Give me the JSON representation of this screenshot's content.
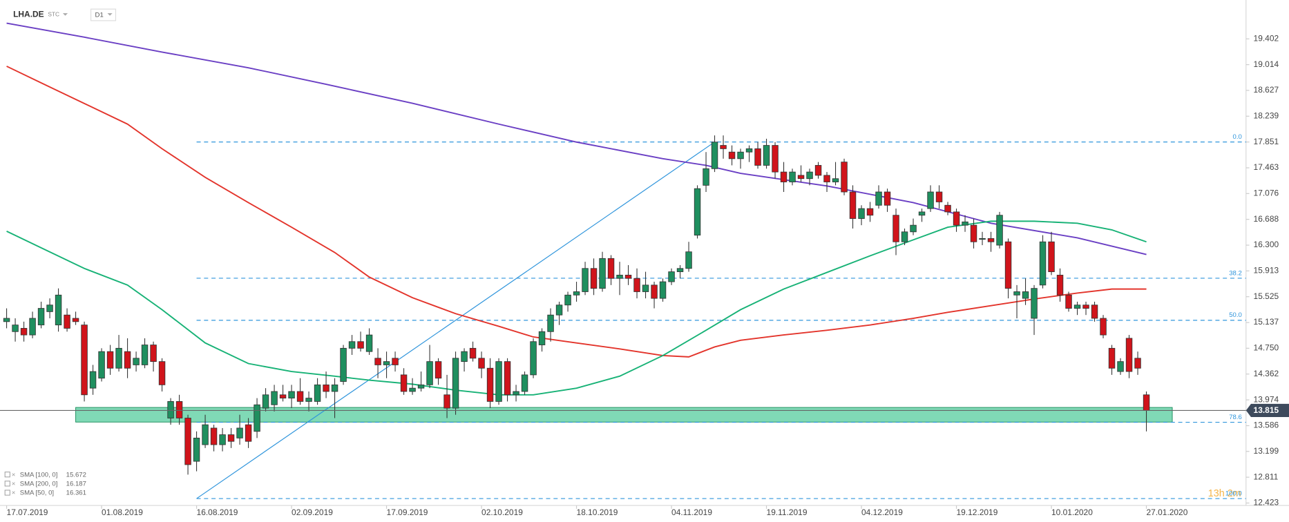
{
  "chart_data": {
    "type": "candlestick",
    "symbol": "LHA.DE",
    "symbol_type": "STC",
    "interval": "D1",
    "timer": "13h 2m",
    "categories": [
      "17.07.2019",
      null,
      null,
      null,
      null,
      null,
      null,
      null,
      null,
      null,
      null,
      "01.08.2019",
      null,
      null,
      null,
      null,
      null,
      null,
      null,
      null,
      null,
      null,
      "16.08.2019",
      null,
      null,
      null,
      null,
      null,
      null,
      null,
      null,
      null,
      null,
      "02.09.2019",
      null,
      null,
      null,
      null,
      null,
      null,
      null,
      null,
      null,
      null,
      "17.09.2019",
      null,
      null,
      null,
      null,
      null,
      null,
      null,
      null,
      null,
      null,
      "02.10.2019",
      null,
      null,
      null,
      null,
      null,
      null,
      null,
      null,
      null,
      null,
      "18.10.2019",
      null,
      null,
      null,
      null,
      null,
      null,
      null,
      null,
      null,
      null,
      "04.11.2019",
      null,
      null,
      null,
      null,
      null,
      null,
      null,
      null,
      null,
      null,
      "19.11.2019",
      null,
      null,
      null,
      null,
      null,
      null,
      null,
      null,
      null,
      null,
      "04.12.2019",
      null,
      null,
      null,
      null,
      null,
      null,
      null,
      null,
      null,
      null,
      "19.12.2019",
      null,
      null,
      null,
      null,
      null,
      null,
      null,
      null,
      null,
      null,
      "10.01.2020",
      null,
      null,
      null,
      null,
      null,
      null,
      null,
      null,
      null,
      null,
      "27.01.2020"
    ],
    "ohlc": [
      [
        15.15,
        15.35,
        15.05,
        15.2
      ],
      [
        15.0,
        15.2,
        14.85,
        15.1
      ],
      [
        15.05,
        15.15,
        14.85,
        14.95
      ],
      [
        14.95,
        15.3,
        14.9,
        15.2
      ],
      [
        15.1,
        15.45,
        15.05,
        15.35
      ],
      [
        15.3,
        15.5,
        15.2,
        15.4
      ],
      [
        15.1,
        15.65,
        15.0,
        15.55
      ],
      [
        15.25,
        15.35,
        15.0,
        15.05
      ],
      [
        15.2,
        15.3,
        15.1,
        15.15
      ],
      [
        15.1,
        15.15,
        13.95,
        14.05
      ],
      [
        14.15,
        14.5,
        14.05,
        14.4
      ],
      [
        14.3,
        14.75,
        14.25,
        14.7
      ],
      [
        14.7,
        14.8,
        14.35,
        14.45
      ],
      [
        14.45,
        14.95,
        14.4,
        14.75
      ],
      [
        14.7,
        14.9,
        14.3,
        14.45
      ],
      [
        14.5,
        14.7,
        14.4,
        14.6
      ],
      [
        14.5,
        14.9,
        14.45,
        14.8
      ],
      [
        14.8,
        14.85,
        14.4,
        14.55
      ],
      [
        14.55,
        14.6,
        14.1,
        14.2
      ],
      [
        13.7,
        14.0,
        13.6,
        13.95
      ],
      [
        13.95,
        14.05,
        13.6,
        13.7
      ],
      [
        13.7,
        13.75,
        12.85,
        13.0
      ],
      [
        13.05,
        13.5,
        12.9,
        13.4
      ],
      [
        13.3,
        13.75,
        13.25,
        13.6
      ],
      [
        13.55,
        13.6,
        13.2,
        13.3
      ],
      [
        13.3,
        13.55,
        13.2,
        13.45
      ],
      [
        13.45,
        13.55,
        13.25,
        13.35
      ],
      [
        13.4,
        13.75,
        13.3,
        13.55
      ],
      [
        13.6,
        13.7,
        13.25,
        13.35
      ],
      [
        13.5,
        14.0,
        13.4,
        13.9
      ],
      [
        13.85,
        14.15,
        13.8,
        14.05
      ],
      [
        13.9,
        14.2,
        13.8,
        14.1
      ],
      [
        14.05,
        14.2,
        13.95,
        14.0
      ],
      [
        14.0,
        14.2,
        13.85,
        14.1
      ],
      [
        14.1,
        14.3,
        13.9,
        13.95
      ],
      [
        13.95,
        14.1,
        13.8,
        14.0
      ],
      [
        13.95,
        14.3,
        13.9,
        14.2
      ],
      [
        14.2,
        14.4,
        14.0,
        14.1
      ],
      [
        14.1,
        14.3,
        13.7,
        14.2
      ],
      [
        14.25,
        14.8,
        14.2,
        14.75
      ],
      [
        14.75,
        14.95,
        14.65,
        14.85
      ],
      [
        14.85,
        15.0,
        14.7,
        14.75
      ],
      [
        14.7,
        15.05,
        14.65,
        14.95
      ],
      [
        14.6,
        14.75,
        14.3,
        14.5
      ],
      [
        14.5,
        14.7,
        14.3,
        14.55
      ],
      [
        14.6,
        14.7,
        14.4,
        14.5
      ],
      [
        14.35,
        14.45,
        14.05,
        14.1
      ],
      [
        14.1,
        14.3,
        14.05,
        14.15
      ],
      [
        14.15,
        14.4,
        14.1,
        14.2
      ],
      [
        14.2,
        14.8,
        14.15,
        14.55
      ],
      [
        14.55,
        14.6,
        14.2,
        14.3
      ],
      [
        14.05,
        14.35,
        13.7,
        13.85
      ],
      [
        13.85,
        14.7,
        13.75,
        14.6
      ],
      [
        14.55,
        14.75,
        14.4,
        14.7
      ],
      [
        14.75,
        14.85,
        14.55,
        14.6
      ],
      [
        14.6,
        14.7,
        14.3,
        14.45
      ],
      [
        14.45,
        14.6,
        13.85,
        13.95
      ],
      [
        13.95,
        14.6,
        13.9,
        14.55
      ],
      [
        14.55,
        14.6,
        13.95,
        14.05
      ],
      [
        14.05,
        14.2,
        13.95,
        14.1
      ],
      [
        14.1,
        14.4,
        14.05,
        14.35
      ],
      [
        14.35,
        14.9,
        14.3,
        14.85
      ],
      [
        14.8,
        15.05,
        14.7,
        15.0
      ],
      [
        15.0,
        15.35,
        14.85,
        15.25
      ],
      [
        15.25,
        15.45,
        15.1,
        15.4
      ],
      [
        15.4,
        15.6,
        15.3,
        15.55
      ],
      [
        15.55,
        15.75,
        15.45,
        15.6
      ],
      [
        15.6,
        16.05,
        15.55,
        15.95
      ],
      [
        15.95,
        16.1,
        15.55,
        15.65
      ],
      [
        15.65,
        16.2,
        15.6,
        16.1
      ],
      [
        16.1,
        16.15,
        15.7,
        15.8
      ],
      [
        15.8,
        16.05,
        15.55,
        15.85
      ],
      [
        15.85,
        16.0,
        15.7,
        15.8
      ],
      [
        15.8,
        15.95,
        15.5,
        15.6
      ],
      [
        15.6,
        15.9,
        15.5,
        15.7
      ],
      [
        15.7,
        15.75,
        15.35,
        15.5
      ],
      [
        15.5,
        15.8,
        15.45,
        15.75
      ],
      [
        15.75,
        15.95,
        15.7,
        15.9
      ],
      [
        15.9,
        16.0,
        15.8,
        15.95
      ],
      [
        15.95,
        16.35,
        15.9,
        16.2
      ],
      [
        16.45,
        17.2,
        16.4,
        17.15
      ],
      [
        17.2,
        17.7,
        17.1,
        17.45
      ],
      [
        17.45,
        17.95,
        17.4,
        17.85
      ],
      [
        17.8,
        17.95,
        17.6,
        17.75
      ],
      [
        17.7,
        17.8,
        17.5,
        17.6
      ],
      [
        17.6,
        17.75,
        17.45,
        17.7
      ],
      [
        17.7,
        17.8,
        17.55,
        17.75
      ],
      [
        17.75,
        17.85,
        17.45,
        17.5
      ],
      [
        17.5,
        17.9,
        17.45,
        17.8
      ],
      [
        17.8,
        17.85,
        17.3,
        17.4
      ],
      [
        17.4,
        17.55,
        17.1,
        17.25
      ],
      [
        17.25,
        17.45,
        17.2,
        17.4
      ],
      [
        17.35,
        17.5,
        17.25,
        17.3
      ],
      [
        17.3,
        17.45,
        17.2,
        17.4
      ],
      [
        17.5,
        17.55,
        17.3,
        17.35
      ],
      [
        17.35,
        17.4,
        17.1,
        17.25
      ],
      [
        17.25,
        17.55,
        17.2,
        17.3
      ],
      [
        17.55,
        17.6,
        17.05,
        17.1
      ],
      [
        17.1,
        17.2,
        16.55,
        16.7
      ],
      [
        16.7,
        16.9,
        16.6,
        16.85
      ],
      [
        16.85,
        16.95,
        16.65,
        16.75
      ],
      [
        16.9,
        17.2,
        16.85,
        17.1
      ],
      [
        17.1,
        17.15,
        16.8,
        16.9
      ],
      [
        16.75,
        16.85,
        16.15,
        16.35
      ],
      [
        16.35,
        16.55,
        16.3,
        16.5
      ],
      [
        16.5,
        16.7,
        16.45,
        16.6
      ],
      [
        16.75,
        16.85,
        16.65,
        16.8
      ],
      [
        16.85,
        17.2,
        16.8,
        17.1
      ],
      [
        17.1,
        17.2,
        16.85,
        16.95
      ],
      [
        16.9,
        16.95,
        16.75,
        16.8
      ],
      [
        16.8,
        16.85,
        16.5,
        16.6
      ],
      [
        16.6,
        16.75,
        16.5,
        16.65
      ],
      [
        16.6,
        16.7,
        16.25,
        16.35
      ],
      [
        16.4,
        16.5,
        16.3,
        16.4
      ],
      [
        16.4,
        16.5,
        16.2,
        16.35
      ],
      [
        16.3,
        16.8,
        16.25,
        16.75
      ],
      [
        16.35,
        16.4,
        15.5,
        15.65
      ],
      [
        15.55,
        15.7,
        15.2,
        15.6
      ],
      [
        15.5,
        15.8,
        15.4,
        15.6
      ],
      [
        15.2,
        15.7,
        14.95,
        15.65
      ],
      [
        15.7,
        16.45,
        15.65,
        16.35
      ],
      [
        16.35,
        16.5,
        15.85,
        15.9
      ],
      [
        15.85,
        15.95,
        15.45,
        15.55
      ],
      [
        15.55,
        15.6,
        15.3,
        15.35
      ],
      [
        15.35,
        15.45,
        15.25,
        15.4
      ],
      [
        15.4,
        15.45,
        15.25,
        15.35
      ],
      [
        15.4,
        15.45,
        15.15,
        15.2
      ],
      [
        15.2,
        15.25,
        14.9,
        14.95
      ],
      [
        14.75,
        14.8,
        14.35,
        14.45
      ],
      [
        14.4,
        14.6,
        14.35,
        14.55
      ],
      [
        14.9,
        14.95,
        14.3,
        14.4
      ],
      [
        14.6,
        14.7,
        14.35,
        14.45
      ],
      [
        14.05,
        14.1,
        13.5,
        13.815
      ]
    ],
    "up_color": "#1f8f5f",
    "down_color": "#d0141b",
    "series": [
      {
        "name": "SMA [100, 0]",
        "last": 15.672,
        "color": "#e3342b",
        "x": [
          0,
          4,
          9,
          14,
          18,
          23,
          28,
          33,
          38,
          42,
          47,
          52,
          57,
          61,
          66,
          71,
          76,
          79,
          82,
          85,
          90,
          95,
          100,
          105,
          109,
          114,
          119,
          124,
          128,
          132
        ],
        "values": [
          18.99,
          18.74,
          18.43,
          18.12,
          17.75,
          17.32,
          16.94,
          16.57,
          16.19,
          15.82,
          15.51,
          15.27,
          15.08,
          14.92,
          14.83,
          14.74,
          14.64,
          14.62,
          14.77,
          14.87,
          14.95,
          15.02,
          15.1,
          15.2,
          15.29,
          15.39,
          15.49,
          15.58,
          15.64,
          15.64
        ]
      },
      {
        "name": "SMA [200, 0]",
        "last": 16.187,
        "color": "#6a3fc4",
        "x": [
          0,
          9,
          18,
          28,
          37,
          47,
          57,
          66,
          76,
          81,
          85,
          95,
          105,
          114,
          124,
          132
        ],
        "values": [
          19.638,
          19.427,
          19.203,
          18.967,
          18.719,
          18.433,
          18.12,
          17.85,
          17.6,
          17.5,
          17.38,
          17.19,
          16.94,
          16.63,
          16.41,
          16.16
        ]
      },
      {
        "name": "SMA [50, 0]",
        "last": 16.361,
        "color": "#17b276",
        "x": [
          0,
          4,
          9,
          14,
          18,
          23,
          28,
          33,
          38,
          42,
          47,
          52,
          57,
          61,
          66,
          71,
          76,
          81,
          85,
          90,
          95,
          100,
          105,
          109,
          114,
          119,
          124,
          128,
          132
        ],
        "values": [
          16.51,
          16.26,
          15.95,
          15.7,
          15.33,
          14.83,
          14.52,
          14.4,
          14.33,
          14.27,
          14.21,
          14.12,
          14.05,
          14.05,
          14.15,
          14.33,
          14.64,
          15.02,
          15.33,
          15.64,
          15.89,
          16.14,
          16.38,
          16.57,
          16.66,
          16.66,
          16.63,
          16.53,
          16.35
        ]
      }
    ],
    "fib": {
      "low": 12.49,
      "high": 17.851,
      "low_index": 22,
      "high_index": 82,
      "color": "#2f95dc",
      "levels": [
        {
          "value": 0,
          "label": "0.0"
        },
        {
          "value": 38.2,
          "label": "38.2"
        },
        {
          "value": 50,
          "label": "50.0"
        },
        {
          "value": 78.6,
          "label": "78.6"
        },
        {
          "value": 100,
          "label": "100.0"
        }
      ]
    },
    "zone": {
      "low": 13.64,
      "high": 13.86,
      "from_index": 8,
      "to_index": 135,
      "color": "#3cc48f"
    },
    "last_price": 13.815,
    "ylim": [
      12.386,
      19.986
    ],
    "yticks": [
      19.402,
      19.014,
      18.627,
      18.239,
      17.851,
      17.463,
      17.076,
      16.688,
      {
        "value": 16.3,
        "label": "16.300"
      },
      15.913,
      15.525,
      15.137,
      {
        "value": 14.75,
        "label": "14.750"
      },
      14.362,
      13.974,
      13.586,
      13.199,
      12.811,
      12.423
    ]
  }
}
